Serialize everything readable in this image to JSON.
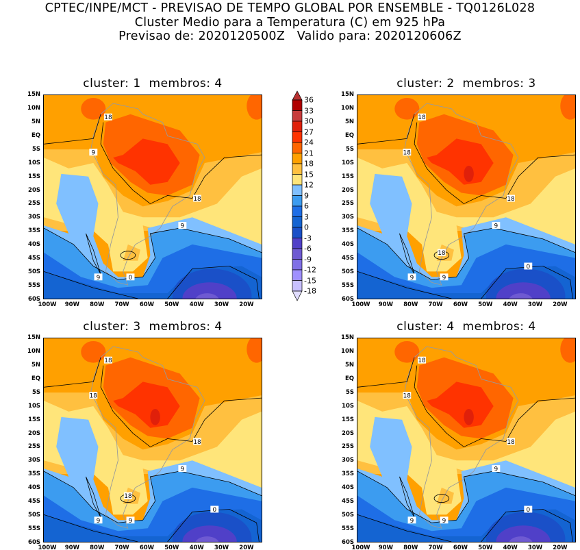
{
  "header": {
    "line1": "CPTEC/INPE/MCT - PREVISAO DE TEMPO GLOBAL POR ENSEMBLE - TQ0126L028",
    "line2": "Cluster Medio para a Temperatura (C) em 925 hPa",
    "line3": "Previsao de: 2020120500Z   Valido para: 2020120606Z"
  },
  "panels": [
    {
      "title": "cluster: 1  membros: 4",
      "contour_labels": [
        "18",
        "18",
        "9",
        "9",
        "9",
        "0"
      ]
    },
    {
      "title": "cluster: 2  membros: 3",
      "contour_labels": [
        "18",
        "18",
        "18",
        "9",
        "9",
        "9",
        "0",
        "18"
      ]
    },
    {
      "title": "cluster: 3  membros: 4",
      "contour_labels": [
        "18",
        "18",
        "18",
        "9",
        "9",
        "9",
        "0",
        "18"
      ]
    },
    {
      "title": "cluster: 4  membros: 4",
      "contour_labels": [
        "18",
        "18",
        "18",
        "9",
        "9",
        "9",
        "0"
      ]
    }
  ],
  "axes": {
    "lat_labels": [
      "15N",
      "10N",
      "5N",
      "EQ",
      "5S",
      "10S",
      "15S",
      "20S",
      "25S",
      "30S",
      "35S",
      "40S",
      "45S",
      "50S",
      "55S",
      "60S"
    ],
    "lon_labels": [
      "100W",
      "90W",
      "80W",
      "70W",
      "60W",
      "50W",
      "40W",
      "30W",
      "20W"
    ]
  },
  "colorbar": {
    "labels": [
      "36",
      "33",
      "30",
      "27",
      "24",
      "21",
      "18",
      "15",
      "12",
      "9",
      "6",
      "3",
      "0",
      "-3",
      "-6",
      "-9",
      "-12",
      "-15",
      "-18"
    ],
    "colors": [
      "#b00000",
      "#c83c3c",
      "#e0200a",
      "#ff3300",
      "#ff6600",
      "#ffa000",
      "#ffc040",
      "#ffe57a",
      "#80c0ff",
      "#3c9cf0",
      "#1e6ee6",
      "#1464d2",
      "#1a50c8",
      "#5040c8",
      "#6e5ad2",
      "#8070e6",
      "#a090ff",
      "#c8c0ff"
    ],
    "over_color": "#b83030",
    "under_color": "#e0dcff"
  }
}
